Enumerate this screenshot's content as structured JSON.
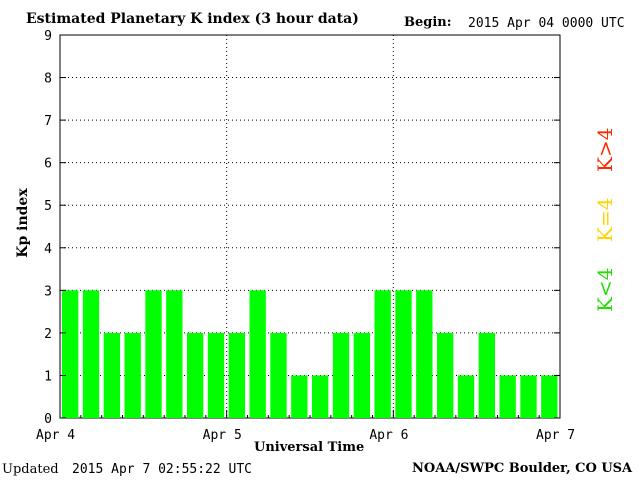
{
  "header": {
    "title": "Estimated Planetary K index (3 hour data)",
    "begin_label": "Begin:",
    "begin_value": "2015 Apr 04 0000 UTC"
  },
  "footer": {
    "updated_label": "Updated",
    "updated_value": "2015 Apr  7 02:55:22 UTC",
    "source": "NOAA/SWPC Boulder, CO USA"
  },
  "legend": {
    "items": [
      {
        "label": "K>4",
        "color": "#ff2a00"
      },
      {
        "label": "K=4",
        "color": "#ffd400"
      },
      {
        "label": "K<4",
        "color": "#22e000"
      }
    ]
  },
  "colors": {
    "bar": "#00ff00",
    "grid": "#000000"
  },
  "chart_data": {
    "type": "bar",
    "title": "Estimated Planetary K index (3 hour data)",
    "xlabel": "Universal Time",
    "ylabel": "Kp index",
    "ylim": [
      0,
      9
    ],
    "yticks": [
      "0",
      "1",
      "2",
      "3",
      "4",
      "5",
      "6",
      "7",
      "8",
      "9"
    ],
    "xticks": [
      "Apr 4",
      "Apr 5",
      "Apr 6",
      "Apr 7"
    ],
    "grid": true,
    "values": [
      3,
      3,
      2,
      2,
      3,
      3,
      2,
      2,
      2,
      3,
      2,
      1,
      1,
      2,
      2,
      3,
      3,
      3,
      2,
      1,
      2,
      1,
      1,
      1
    ]
  }
}
